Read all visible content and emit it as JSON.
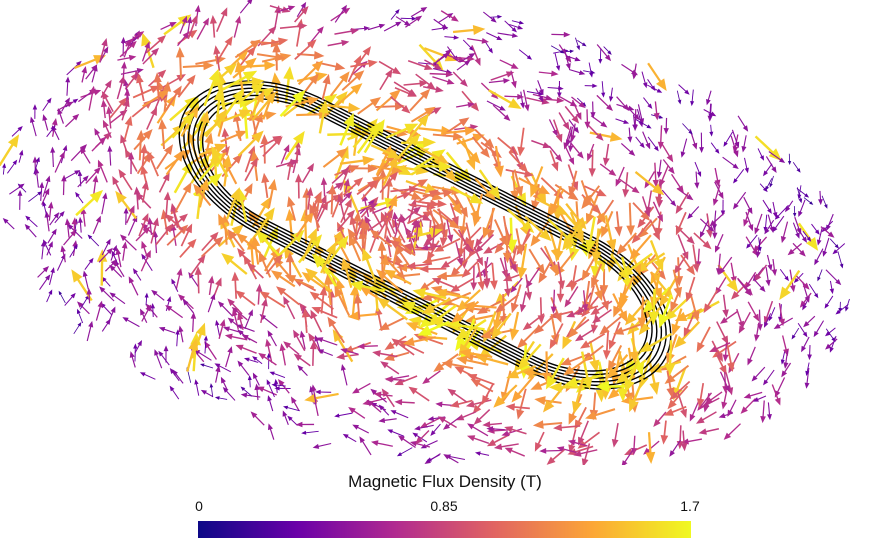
{
  "colorbar": {
    "title": "Magnetic Flux Density (T)",
    "min": 0,
    "max": 1.7,
    "tick_labels": [
      "0",
      "0.85",
      "1.7"
    ],
    "tick_values": [
      0,
      0.85,
      1.7
    ],
    "colormap": "plasma",
    "colors": [
      "#0d0887",
      "#6a00a8",
      "#b12a90",
      "#e16462",
      "#fca636",
      "#f0f921"
    ]
  },
  "scene": {
    "coil": {
      "color": "#000000"
    },
    "arrows": {
      "count": "many",
      "color_by": "magnetic flux density"
    }
  }
}
